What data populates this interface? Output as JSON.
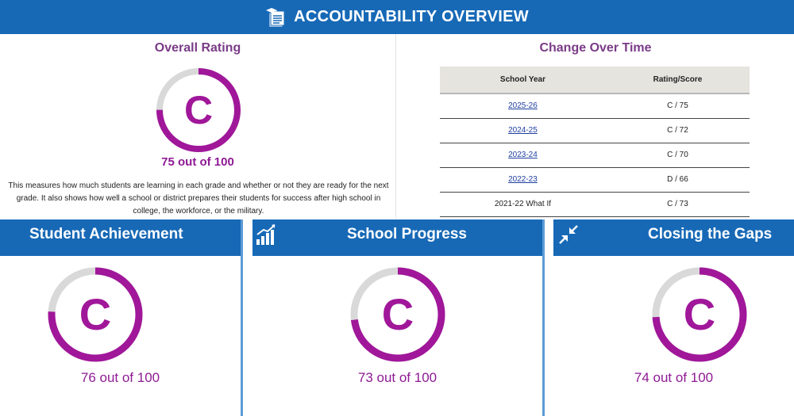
{
  "header": {
    "title": "ACCOUNTABILITY OVERVIEW",
    "icon": "report-card-icon"
  },
  "overall": {
    "title": "Overall Rating",
    "grade": "C",
    "score_text": "75 out of 100",
    "score_fraction": 0.75,
    "description": "This measures how much students are learning in each grade and whether or not they are ready for the next grade. It also shows how well a school or district prepares their students for success after high school in college, the workforce, or the military."
  },
  "history": {
    "title": "Change Over Time",
    "columns": [
      "School Year",
      "Rating/Score"
    ],
    "rows": [
      {
        "year": "2025-26",
        "rating": "C / 75",
        "link": true
      },
      {
        "year": "2024-25",
        "rating": "C / 72",
        "link": true
      },
      {
        "year": "2023-24",
        "rating": "C / 70",
        "link": true
      },
      {
        "year": "2022-23",
        "rating": "D / 66",
        "link": true
      },
      {
        "year": "2021-22 What If",
        "rating": "C / 73",
        "link": false
      }
    ]
  },
  "domains": [
    {
      "title": "Student Achievement",
      "icon": "",
      "grade": "C",
      "score_text": "76 out of 100",
      "score_fraction": 0.76
    },
    {
      "title": "School Progress",
      "icon": "growth-chart-icon",
      "grade": "C",
      "score_text": "73 out of 100",
      "score_fraction": 0.73
    },
    {
      "title": "Closing the Gaps",
      "icon": "compress-arrows-icon",
      "grade": "C",
      "score_text": "74 out of 100",
      "score_fraction": 0.74
    }
  ],
  "colors": {
    "header_blue": "#1769b6",
    "ring_purple": "#a0179a",
    "ring_track": "#d9d9d9",
    "title_purple": "#7a3b87",
    "link_blue": "#1f3fa1"
  }
}
